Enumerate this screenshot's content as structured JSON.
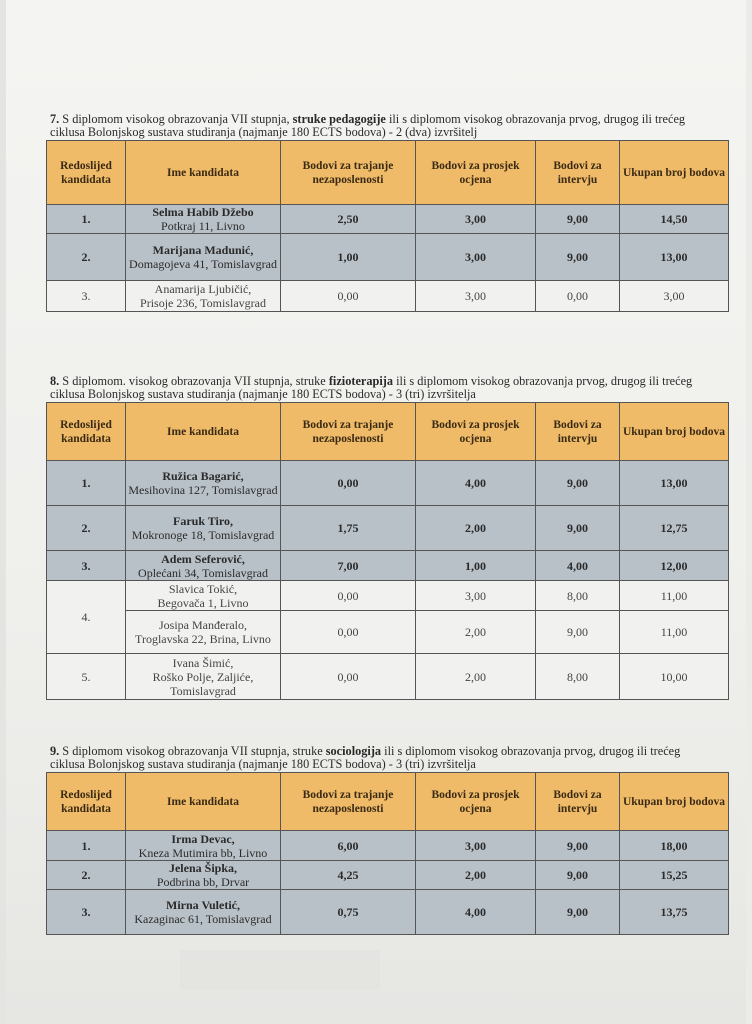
{
  "columns": [
    "Redoslijed kandidata",
    "Ime kandidata",
    "Bodovi za trajanje nezaposlenosti",
    "Bodovi za prosjek ocjena",
    "Bodovi za intervju",
    "Ukupan broj bodova"
  ],
  "sections": [
    {
      "number": "7.",
      "text_before": " S diplomom visokog obrazovanja VII stupnja, ",
      "bold": "struke pedagogije",
      "text_after": " ili s diplomom visokog obrazovanja prvog, drugog ili trećeg",
      "line2": "ciklusa Bolonjskog sustava studiranja (najmanje 180 ECTS bodova) - 2 (dva) izvršitelj",
      "rows": [
        {
          "rank": "1.",
          "name": "Selma Habib Džebo",
          "address": "Potkraj 11, Livno",
          "unemployment": "2,50",
          "grade": "3,00",
          "interview": "9,00",
          "total": "14,50",
          "selected": true
        },
        {
          "rank": "2.",
          "name": "Marijana Madunić,",
          "address": "Domagojeva 41, Tomislavgrad",
          "unemployment": "1,00",
          "grade": "3,00",
          "interview": "9,00",
          "total": "13,00",
          "selected": true
        },
        {
          "rank": "3.",
          "name": "Anamarija Ljubičić,",
          "address": "Prisoje 236, Tomislavgrad",
          "unemployment": "0,00",
          "grade": "3,00",
          "interview": "0,00",
          "total": "3,00",
          "selected": false
        }
      ]
    },
    {
      "number": "8.",
      "text_before": " S diplomom. visokog obrazovanja VII stupnja, struke ",
      "bold": "fizioterapija",
      "text_after": " ili s diplomom visokog obrazovanja prvog, drugog ili trećeg",
      "line2": "ciklusa Bolonjskog sustava studiranja (najmanje 180 ECTS bodova) - 3 (tri) izvršitelja",
      "rows": [
        {
          "rank": "1.",
          "name": "Ružica Bagarić,",
          "address": "Mesihovina 127, Tomislavgrad",
          "unemployment": "0,00",
          "grade": "4,00",
          "interview": "9,00",
          "total": "13,00",
          "selected": true
        },
        {
          "rank": "2.",
          "name": "Faruk Tiro,",
          "address": "Mokronoge 18, Tomislavgrad",
          "unemployment": "1,75",
          "grade": "2,00",
          "interview": "9,00",
          "total": "12,75",
          "selected": true
        },
        {
          "rank": "3.",
          "name": "Adem Seferović,",
          "address": "Oplećani 34, Tomislavgrad",
          "unemployment": "7,00",
          "grade": "1,00",
          "interview": "4,00",
          "total": "12,00",
          "selected": true
        },
        {
          "rank": "4.",
          "name": "Slavica Tokić,",
          "address": "Begovača 1, Livno",
          "unemployment": "0,00",
          "grade": "3,00",
          "interview": "8,00",
          "total": "11,00",
          "selected": false,
          "shared_rank": true
        },
        {
          "rank": "",
          "name": "Josipa Manđeralo,",
          "address": "Troglavska 22, Brina, Livno",
          "unemployment": "0,00",
          "grade": "2,00",
          "interview": "9,00",
          "total": "11,00",
          "selected": false
        },
        {
          "rank": "5.",
          "name": "Ivana Šimić,",
          "address": "Roško Polje, Zaljiće, Tomislavgrad",
          "unemployment": "0,00",
          "grade": "2,00",
          "interview": "8,00",
          "total": "10,00",
          "selected": false
        }
      ]
    },
    {
      "number": "9.",
      "text_before": " S diplomom visokog obrazovanja VII stupnja, struke ",
      "bold": "sociologija",
      "text_after": " ili s diplomom visokog obrazovanja prvog, drugog ili trećeg",
      "line2": "ciklusa Bolonjskog sustava studiranja (najmanje 180 ECTS bodova) - 3 (tri) izvršitelja",
      "rows": [
        {
          "rank": "1.",
          "name": "Irma Devac,",
          "address": "Kneza Mutimira bb, Livno",
          "unemployment": "6,00",
          "grade": "3,00",
          "interview": "9,00",
          "total": "18,00",
          "selected": true
        },
        {
          "rank": "2.",
          "name": "Jelena Šipka,",
          "address": "Podbrina bb, Drvar",
          "unemployment": "4,25",
          "grade": "2,00",
          "interview": "9,00",
          "total": "15,25",
          "selected": true
        },
        {
          "rank": "3.",
          "name": "Mirna Vuletić,",
          "address": "Kazaginac 61, Tomislavgrad",
          "unemployment": "0,75",
          "grade": "4,00",
          "interview": "9,00",
          "total": "13,75",
          "selected": true
        }
      ]
    }
  ],
  "colors": {
    "header": "#f0bb68",
    "selected_row": "#b9c1c8",
    "other_row": "#f1f1ef"
  }
}
